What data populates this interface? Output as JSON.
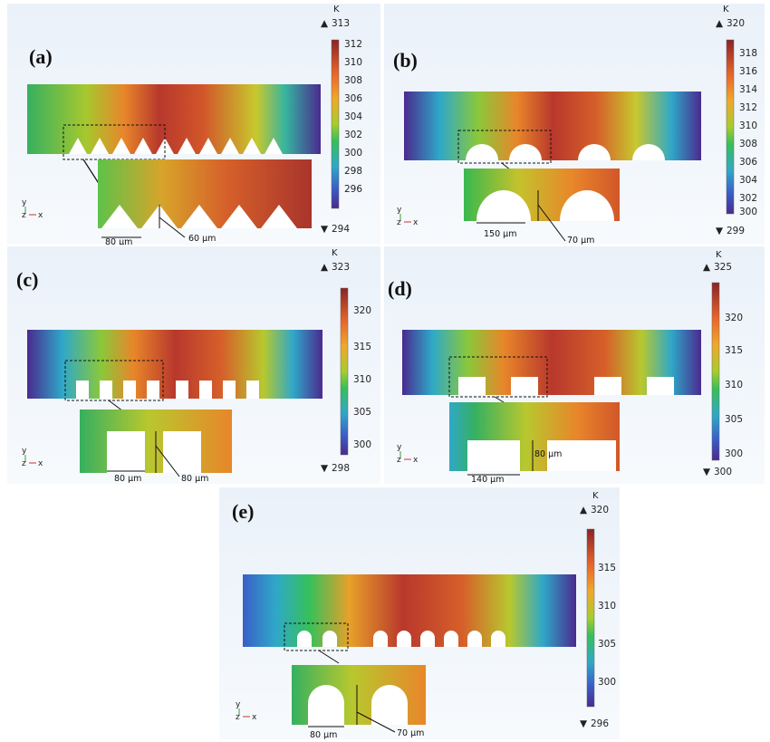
{
  "colormap": [
    "#4a2a8f",
    "#3a5fc8",
    "#2fa8c8",
    "#36c05a",
    "#a8cc2c",
    "#f0a82a",
    "#e8662a",
    "#b8332e",
    "#8a2325"
  ],
  "axis_labels": {
    "y": "y",
    "z": "z",
    "x": "x"
  },
  "panels": [
    {
      "label": "(a)",
      "unit": "K",
      "max_value": "313",
      "min_value": "294",
      "ticks": [
        "312",
        "310",
        "308",
        "306",
        "304",
        "302",
        "300",
        "298",
        "296"
      ],
      "feature": "triangle",
      "pitch_label": "80 µm",
      "height_label": "60 µm"
    },
    {
      "label": "(b)",
      "unit": "K",
      "max_value": "320",
      "min_value": "299",
      "ticks": [
        "318",
        "316",
        "314",
        "312",
        "310",
        "308",
        "306",
        "304",
        "302",
        "300"
      ],
      "feature": "semicircle",
      "pitch_label": "150 µm",
      "height_label": "70 µm"
    },
    {
      "label": "(c)",
      "unit": "K",
      "max_value": "323",
      "min_value": "298",
      "ticks": [
        "320",
        "315",
        "310",
        "305",
        "300"
      ],
      "feature": "rectangle",
      "pitch_label": "80 µm",
      "height_label": "80 µm"
    },
    {
      "label": "(d)",
      "unit": "K",
      "max_value": "325",
      "min_value": "300",
      "ticks": [
        "320",
        "315",
        "310",
        "305",
        "300"
      ],
      "feature": "rectangle-wide",
      "pitch_label": "140 µm",
      "height_label": "80 µm"
    },
    {
      "label": "(e)",
      "unit": "K",
      "max_value": "320",
      "min_value": "296",
      "ticks": [
        "315",
        "310",
        "305",
        "300"
      ],
      "feature": "arch",
      "pitch_label": "80 µm",
      "height_label": "70 µm"
    }
  ]
}
